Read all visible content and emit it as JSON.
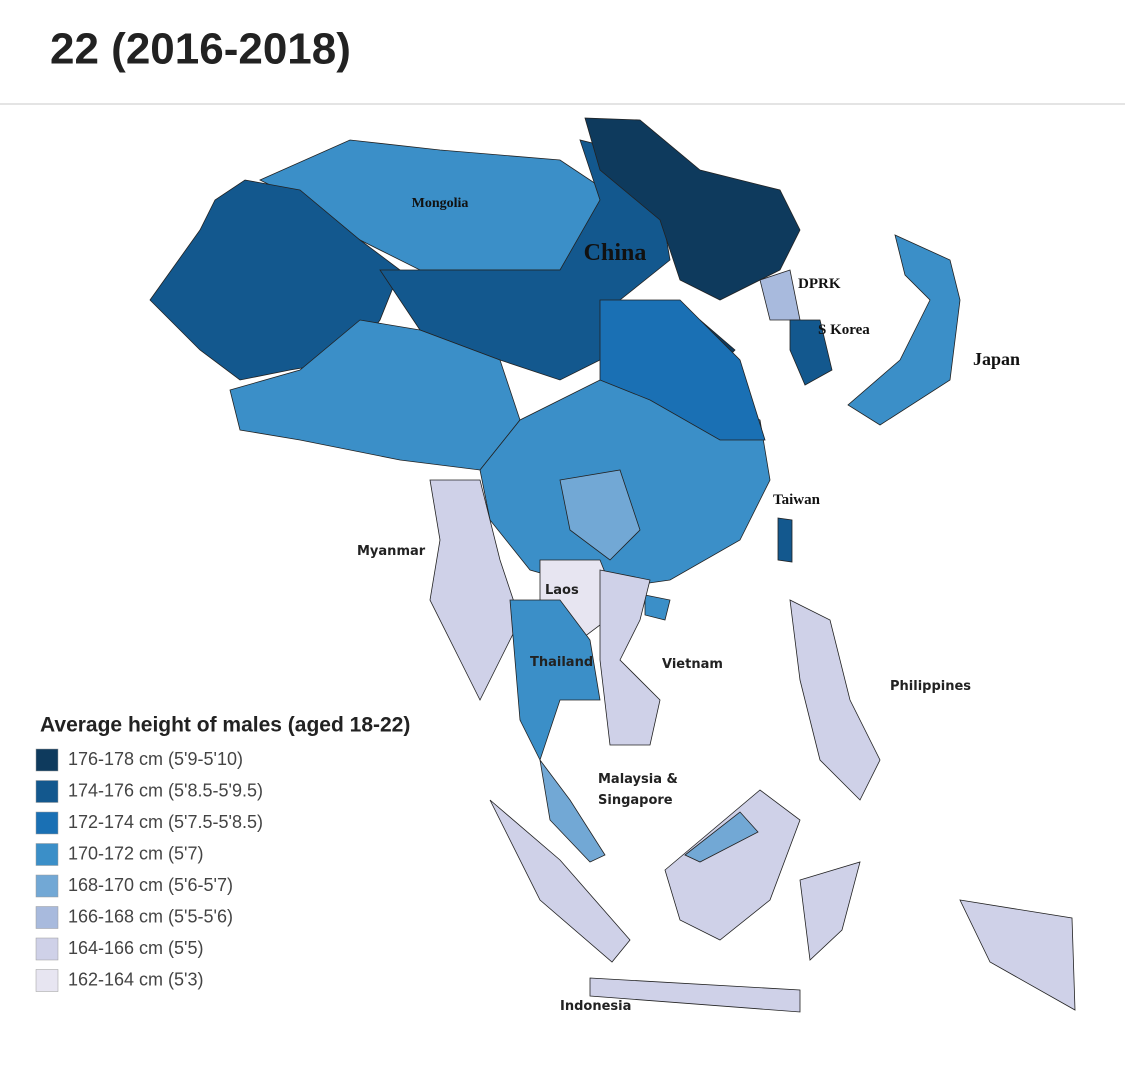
{
  "header": {
    "title": "22 (2016-2018)"
  },
  "map": {
    "labels": {
      "mongolia": "Mongolia",
      "china": "China",
      "dprk": "DPRK",
      "s_korea": "S Korea",
      "japan": "Japan",
      "taiwan": "Taiwan",
      "myanmar": "Myanmar",
      "laos": "Laos",
      "thailand": "Thailand",
      "vietnam": "Vietnam",
      "philippines": "Philippines",
      "malaysia_singapore": [
        "Malaysia &",
        "Singapore"
      ],
      "indonesia": "Indonesia"
    },
    "legend": {
      "title": "Average height of males (aged 18-22)",
      "items": [
        {
          "label": "176-178 cm (5'9-5'10)",
          "color": "#0e3a5d"
        },
        {
          "label": "174-176 cm (5'8.5-5'9.5)",
          "color": "#13588e"
        },
        {
          "label": "172-174 cm (5'7.5-5'8.5)",
          "color": "#1a70b4"
        },
        {
          "label": "170-172 cm (5'7)",
          "color": "#3b8fc8"
        },
        {
          "label": "168-170 cm (5'6-5'7)",
          "color": "#72a8d5"
        },
        {
          "label": "166-168 cm (5'5-5'6)",
          "color": "#a8badd"
        },
        {
          "label": "164-166 cm (5'5)",
          "color": "#cfd1e8"
        },
        {
          "label": "162-164 cm (5'3)",
          "color": "#e7e5f1"
        }
      ]
    }
  }
}
